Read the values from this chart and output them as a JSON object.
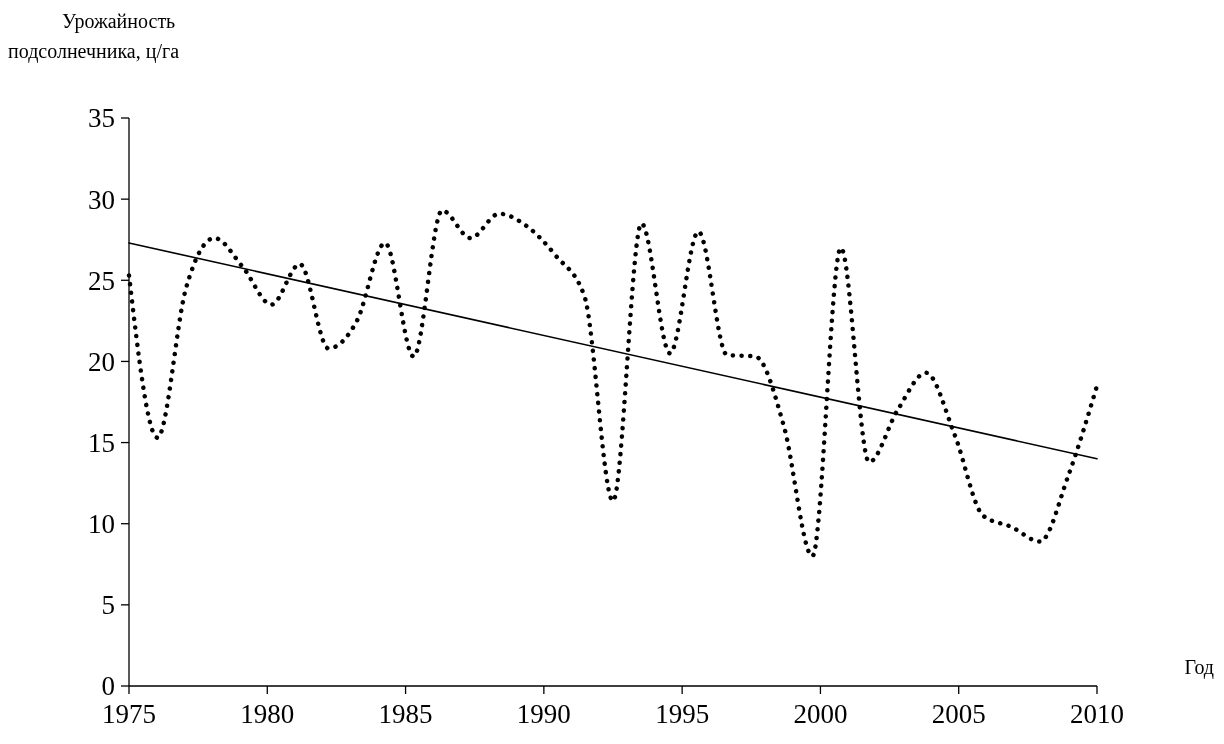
{
  "chart_data": {
    "type": "line",
    "ylabel": "Урожайность подсолнечника, ц/га",
    "xlabel": "Год",
    "xlim": [
      1975,
      2010
    ],
    "xticks": [
      1975,
      1980,
      1985,
      1990,
      1995,
      2000,
      2005,
      2010
    ],
    "ylim": [
      0,
      35
    ],
    "yticks": [
      0,
      5,
      10,
      15,
      20,
      25,
      30,
      35
    ],
    "grid": false,
    "series": [
      {
        "color": "#000000",
        "line_style": "dotted",
        "x": [
          1975,
          1976.03,
          1977.06,
          1978.09,
          1979.12,
          1980.15,
          1981.18,
          1982.21,
          1983.24,
          1984.26,
          1985.29,
          1986.32,
          1987.35,
          1988.38,
          1989.41,
          1990.44,
          1991.47,
          1992.5,
          1993.53,
          1994.56,
          1995.59,
          1996.62,
          1997.65,
          1998.68,
          1999.71,
          2000.74,
          2001.76,
          2002.79,
          2003.82,
          2004.85,
          2005.88,
          2006.91,
          2007.94,
          2008.97,
          2010
        ],
        "values": [
          25.3,
          15.3,
          24.5,
          27.6,
          25.8,
          23.5,
          26,
          20.8,
          22.5,
          27.3,
          20.3,
          29.3,
          27.6,
          29.1,
          28.3,
          26.5,
          24,
          11.4,
          28.5,
          20.5,
          28,
          20.4,
          20.3,
          16,
          8,
          27,
          13.8,
          17,
          19.3,
          15.5,
          10.5,
          9.8,
          8.9,
          13,
          18.5
        ]
      },
      {
        "color": "#000000",
        "line_style": "solid",
        "x": [
          1975,
          2010
        ],
        "values": [
          27.3,
          14
        ]
      }
    ]
  }
}
